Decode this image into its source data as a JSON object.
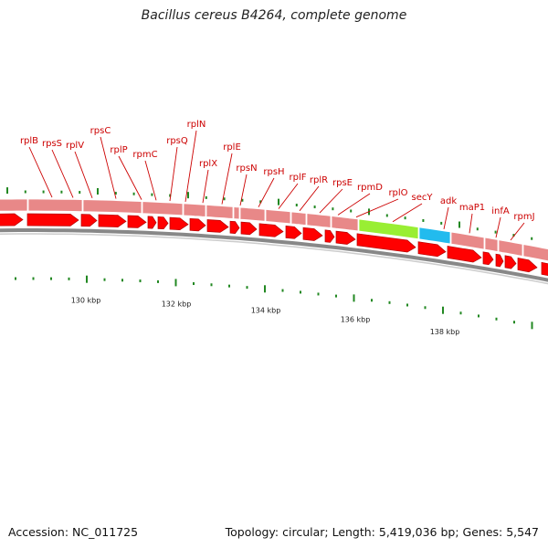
{
  "title": "Bacillus cereus B4264, complete genome",
  "footer": {
    "accession": "Accession: NC_011725",
    "summary": "Topology: circular; Length: 5,419,036 bp; Genes: 5,547"
  },
  "colors": {
    "cds": "#ff0000",
    "cds_edge": "#b30000",
    "rna_track": "#e88888",
    "highlight_green": "#99ee33",
    "highlight_blue": "#22bbee",
    "backbone": "#888888",
    "tick": "#228822",
    "label": "#cc0000"
  },
  "gene_labels": [
    "rplB",
    "rpsS",
    "rplV",
    "rpsC",
    "rplP",
    "rpmC",
    "rpsQ",
    "rplN",
    "rplX",
    "rplE",
    "rpsN",
    "rpsH",
    "rplF",
    "rplR",
    "rpsE",
    "rpmD",
    "rplO",
    "secY",
    "adk",
    "maP1",
    "infA",
    "rpmJ"
  ],
  "kbp_labels": [
    "130 kbp",
    "132 kbp",
    "134 kbp",
    "136 kbp",
    "138 kbp"
  ]
}
